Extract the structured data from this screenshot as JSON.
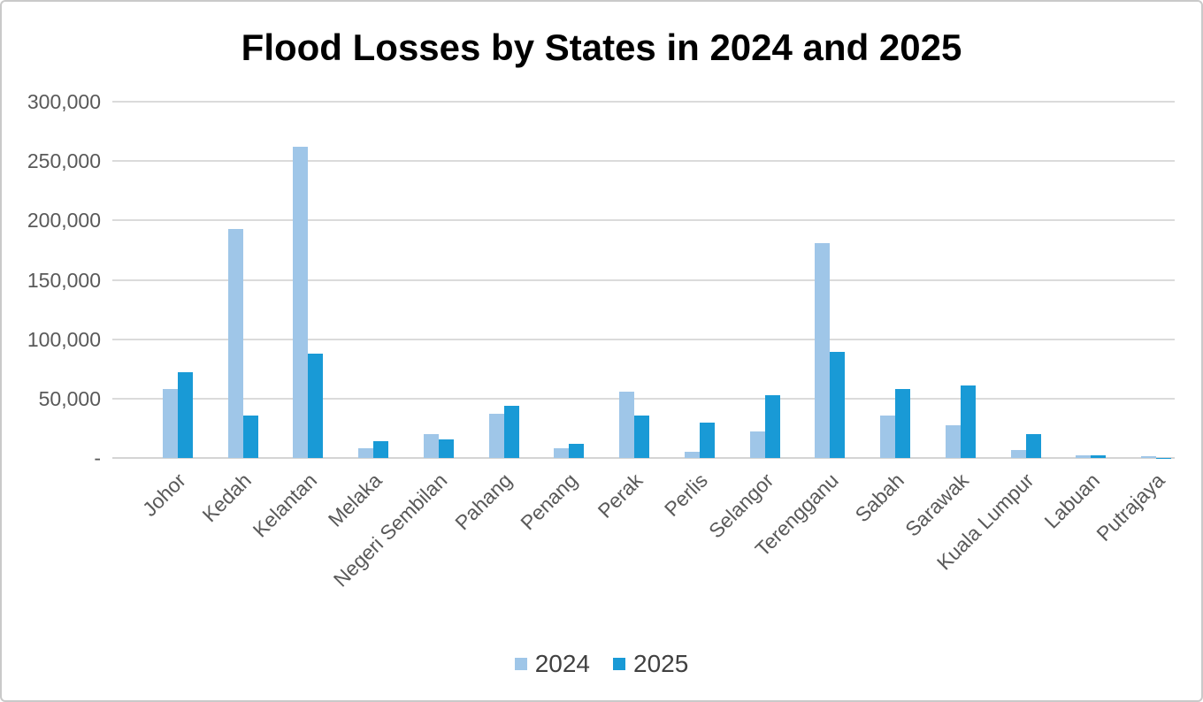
{
  "chart_data": {
    "type": "bar",
    "title": "Flood Losses by States in 2024 and 2025",
    "categories": [
      "Johor",
      "Kedah",
      "Kelantan",
      "Melaka",
      "Negeri Sembilan",
      "Pahang",
      "Penang",
      "Perak",
      "Perlis",
      "Selangor",
      "Terengganu",
      "Sabah",
      "Sarawak",
      "Kuala Lumpur",
      "Labuan",
      "Putrajaya"
    ],
    "series": [
      {
        "name": "2024",
        "color": "#9FC6E8",
        "values": [
          58000,
          193000,
          262000,
          8500,
          20000,
          37000,
          8500,
          56000,
          5000,
          22500,
          181000,
          36000,
          27500,
          7000,
          2200,
          1200
        ]
      },
      {
        "name": "2025",
        "color": "#199AD6",
        "values": [
          72000,
          36000,
          88000,
          14000,
          16000,
          44000,
          12000,
          36000,
          30000,
          53000,
          89000,
          58000,
          61000,
          20000,
          2500,
          300
        ]
      }
    ],
    "ylim": [
      0,
      300000
    ],
    "ytick_interval": 50000,
    "ytick_labels_top_down": [
      "300,000",
      "250,000",
      "200,000",
      "150,000",
      "100,000",
      "50,000",
      "-"
    ],
    "grid": true,
    "legend_position": "bottom"
  },
  "colors": {
    "series_2024": "#9FC6E8",
    "series_2025": "#199AD6",
    "gridline": "#DBDBDB",
    "axis_text": "#595959",
    "legend_text": "#404040",
    "title_text": "#000000",
    "frame_border": "#C9C9C9"
  }
}
